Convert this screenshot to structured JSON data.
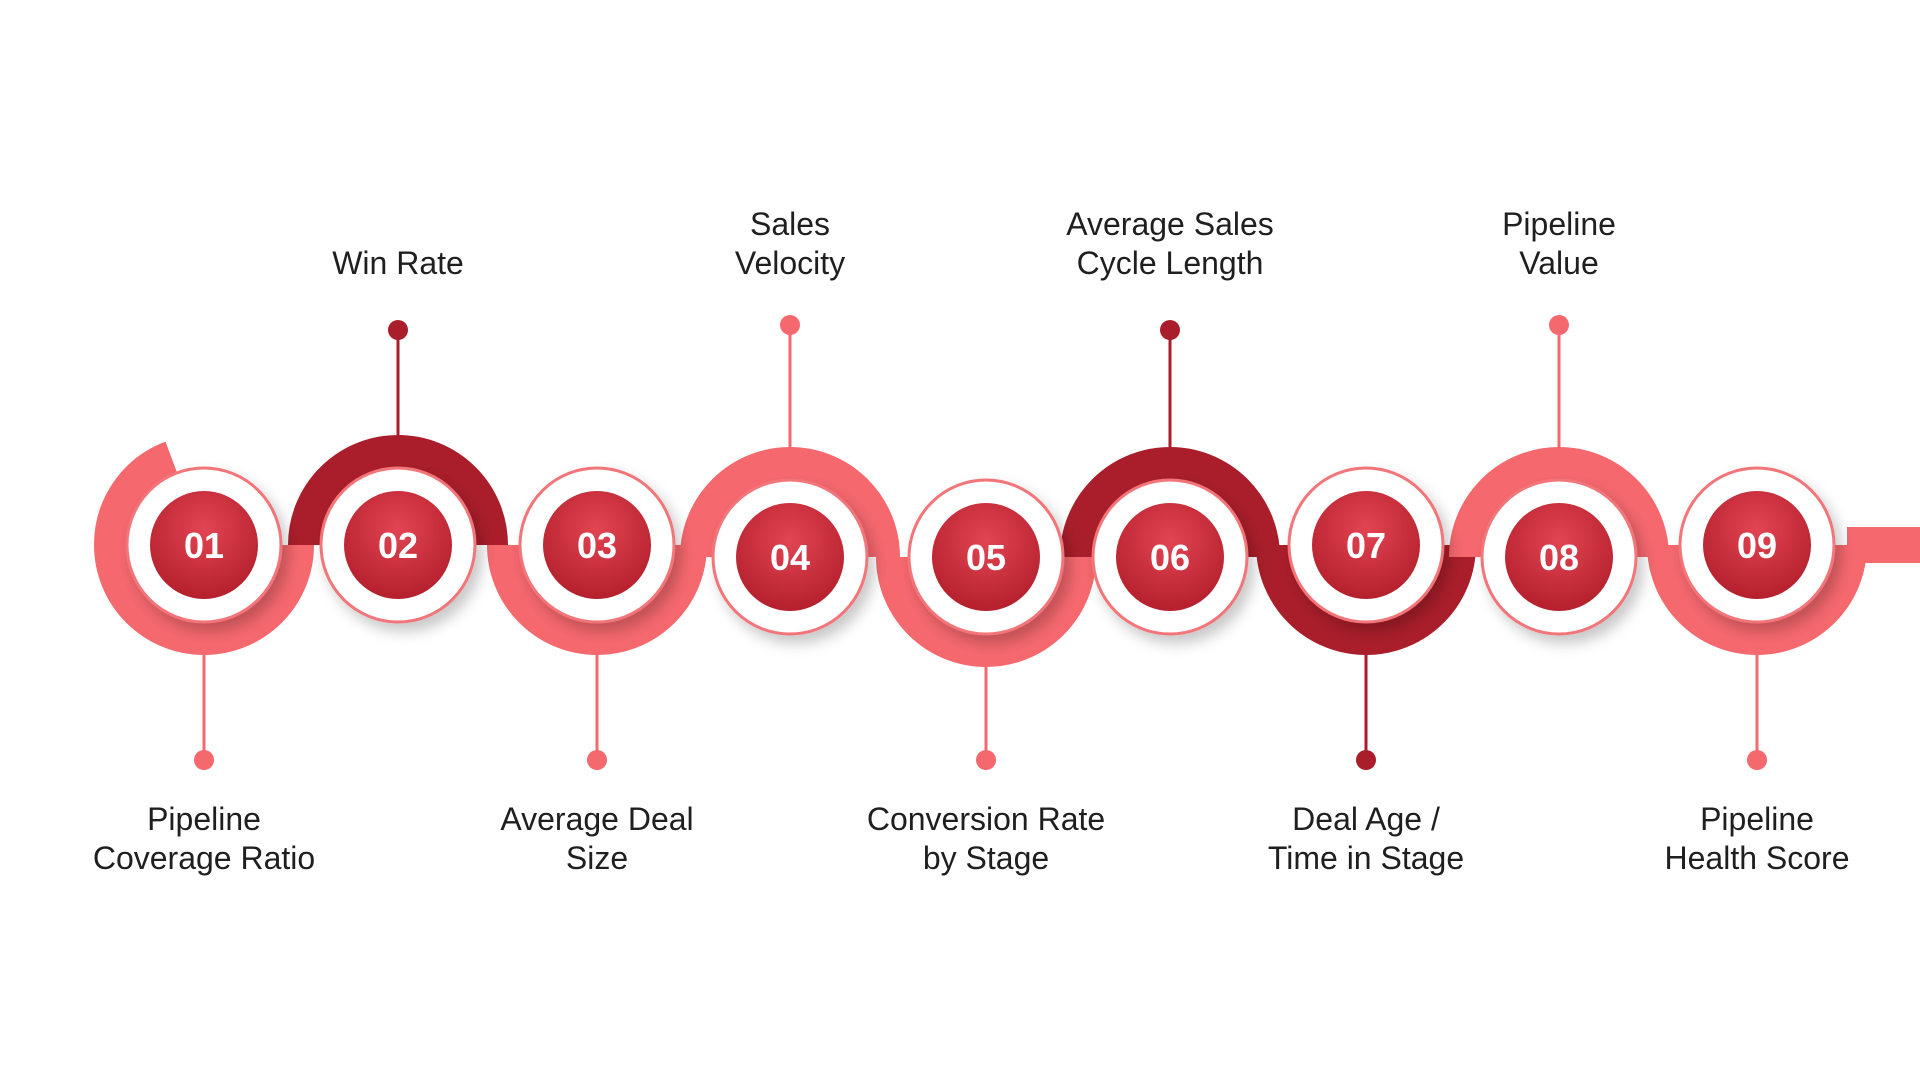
{
  "colors": {
    "light": "#F5686E",
    "dark": "#A91E2A",
    "text": "#1f1f1f",
    "ring": "#F27479"
  },
  "steps": [
    {
      "number": "01",
      "label_lines": [
        "Pipeline",
        "Coverage Ratio"
      ],
      "label_position": "bottom",
      "band_color": "light"
    },
    {
      "number": "02",
      "label_lines": [
        "Win Rate"
      ],
      "label_position": "top",
      "band_color": "dark"
    },
    {
      "number": "03",
      "label_lines": [
        "Average Deal",
        "Size"
      ],
      "label_position": "bottom",
      "band_color": "light"
    },
    {
      "number": "04",
      "label_lines": [
        "Sales",
        "Velocity"
      ],
      "label_position": "top",
      "band_color": "light"
    },
    {
      "number": "05",
      "label_lines": [
        "Conversion Rate",
        "by Stage"
      ],
      "label_position": "bottom",
      "band_color": "light"
    },
    {
      "number": "06",
      "label_lines": [
        "Average Sales",
        "Cycle Length"
      ],
      "label_position": "top",
      "band_color": "dark"
    },
    {
      "number": "07",
      "label_lines": [
        "Deal Age /",
        "Time in Stage"
      ],
      "label_position": "bottom",
      "band_color": "dark"
    },
    {
      "number": "08",
      "label_lines": [
        "Pipeline",
        "Value"
      ],
      "label_position": "top",
      "band_color": "light"
    },
    {
      "number": "09",
      "label_lines": [
        "Pipeline",
        "Health Score"
      ],
      "label_position": "bottom",
      "band_color": "light"
    }
  ]
}
